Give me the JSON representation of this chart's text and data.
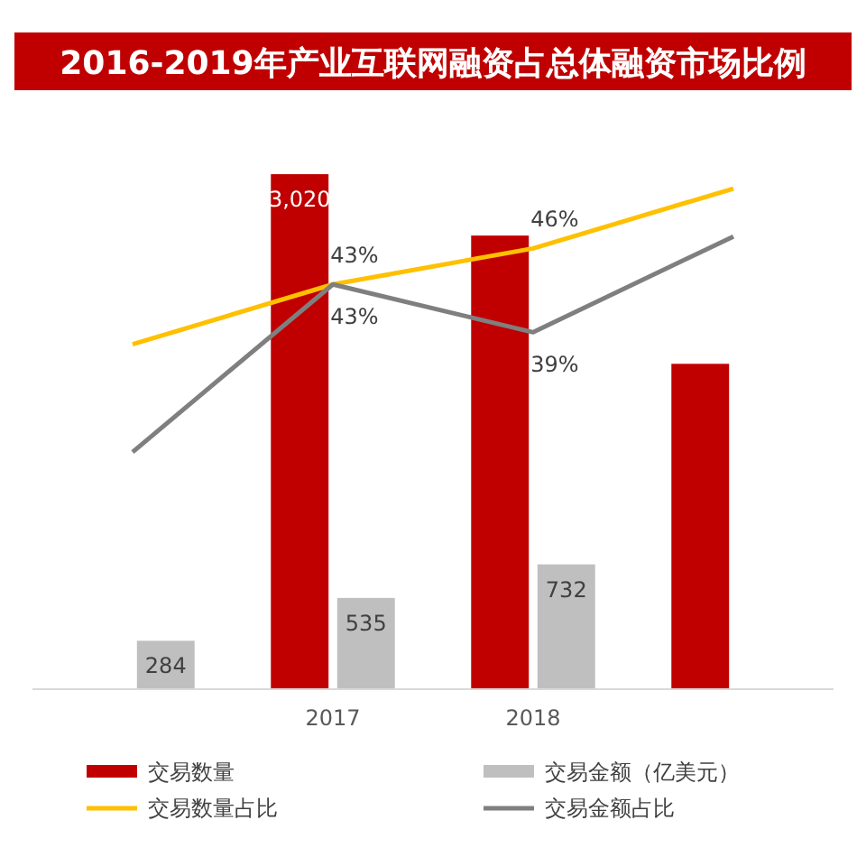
{
  "chart_data": {
    "type": "bar",
    "title": "2016-2019年产业互联网融资占总体融资市场比例",
    "categories": [
      null,
      "2017",
      "2018",
      null
    ],
    "series": [
      {
        "name": "交易数量",
        "color": "#c00000",
        "values": [
          null,
          3020,
          2660,
          1908
        ],
        "value_labels": [
          null,
          "3,020",
          null,
          null
        ]
      },
      {
        "name": "交易金额（亿美元）",
        "color": "#bfbfbf",
        "values": [
          284,
          535,
          732,
          null
        ],
        "value_labels": [
          "284",
          "535",
          "732",
          null
        ]
      },
      {
        "name": "交易数量占比",
        "type": "line",
        "axis": "y2",
        "color": "#ffc000",
        "values": [
          38,
          43,
          46,
          51
        ],
        "value_labels": [
          null,
          "43%",
          "46%",
          null
        ]
      },
      {
        "name": "交易金额占比",
        "type": "line",
        "axis": "y2",
        "color": "#7f7f7f",
        "values": [
          29,
          43,
          39,
          47
        ],
        "value_labels": [
          null,
          "43%",
          "39%",
          null
        ]
      }
    ],
    "legend": "bottom",
    "marker": "none",
    "grid": false
  }
}
